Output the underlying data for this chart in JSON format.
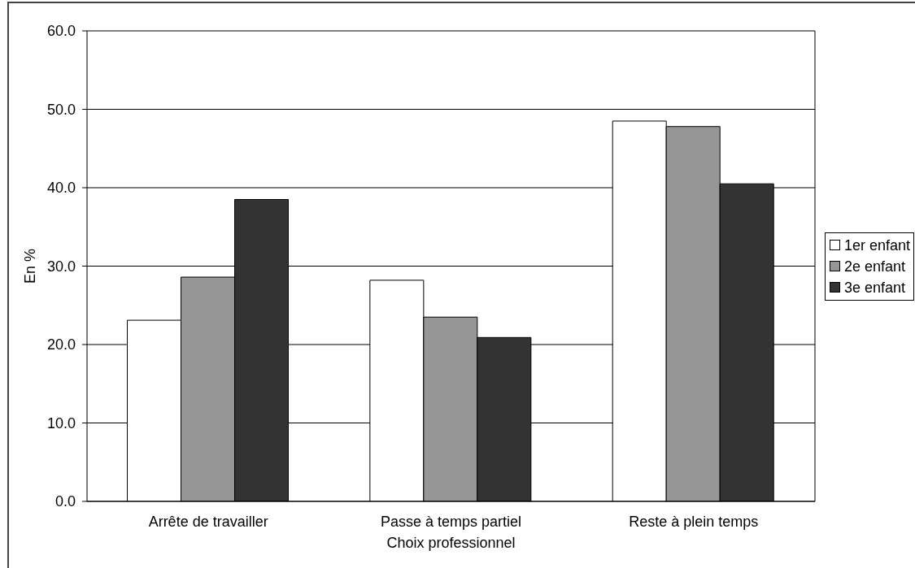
{
  "chart_data": {
    "type": "bar",
    "xlabel": "Choix professionnel",
    "ylabel": "En %",
    "categories": [
      "Arrête de travailler",
      "Passe à temps partiel",
      "Reste à plein temps"
    ],
    "series": [
      {
        "name": "1er enfant",
        "color": "#ffffff",
        "values": [
          23.1,
          28.2,
          48.5
        ]
      },
      {
        "name": "2e enfant",
        "color": "#969696",
        "values": [
          28.6,
          23.5,
          47.8
        ]
      },
      {
        "name": "3e enfant",
        "color": "#333333",
        "values": [
          38.5,
          20.9,
          40.5
        ]
      }
    ],
    "ylim": [
      0,
      60
    ],
    "yticks": [
      {
        "value": 0,
        "label": "0.0"
      },
      {
        "value": 10,
        "label": "10.0"
      },
      {
        "value": 20,
        "label": "20.0"
      },
      {
        "value": 30,
        "label": "30.0"
      },
      {
        "value": 40,
        "label": "40.0"
      },
      {
        "value": 50,
        "label": "50.0"
      },
      {
        "value": 60,
        "label": "60.0"
      }
    ],
    "grid": "y",
    "legend": "right"
  }
}
